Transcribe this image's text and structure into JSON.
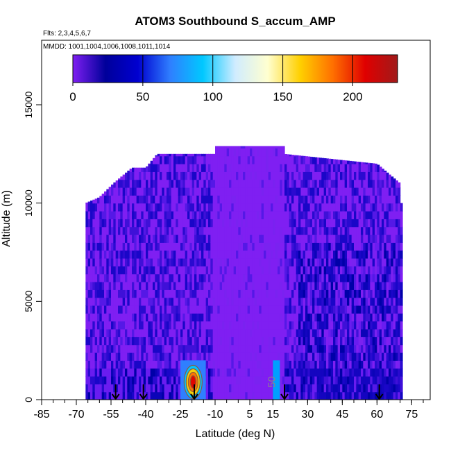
{
  "chart_data": {
    "type": "heatmap",
    "title": "ATOM3 Southbound S_accum_AMP",
    "flights_note": "Flts: 2,3,4,5,6,7",
    "dates_note": "MMDD: 1001,1004,1006,1008,1011,1014",
    "xlabel": "Latitude (deg N)",
    "ylabel": "Altitude (m)",
    "xlim": [
      -85,
      83
    ],
    "ylim": [
      0,
      17500
    ],
    "x_ticks": [
      -85,
      -70,
      -55,
      -40,
      -25,
      -10,
      5,
      15,
      30,
      45,
      60,
      75
    ],
    "x_tick_labels": [
      "-85",
      "-70",
      "-55",
      "-40",
      "-25",
      "-10",
      "5",
      "15",
      "30",
      "45",
      "60",
      "75"
    ],
    "x_minor_step": 5,
    "y_ticks": [
      0,
      5000,
      10000,
      15000
    ],
    "y_tick_labels": [
      "0",
      "5000",
      "10000",
      "15000"
    ],
    "colorbar": {
      "ticks": [
        0,
        50,
        100,
        150,
        200
      ],
      "tick_labels": [
        "0",
        "50",
        "100",
        "150",
        "200"
      ],
      "range": [
        0,
        232
      ],
      "colors": [
        "#7f1ff2",
        "#00009a",
        "#0000d0",
        "#2f7fff",
        "#00c8ff",
        "#d0ecff",
        "#ffffd0",
        "#ffd000",
        "#ff7000",
        "#e00000",
        "#a01a1a"
      ]
    },
    "field": {
      "lat_extent": [
        -66,
        71
      ],
      "altitude_top_by_lat": [
        {
          "lat": -66,
          "alt": 10000
        },
        {
          "lat": -60,
          "alt": 10300
        },
        {
          "lat": -54,
          "alt": 11000
        },
        {
          "lat": -46,
          "alt": 11800
        },
        {
          "lat": -40,
          "alt": 11800
        },
        {
          "lat": -35,
          "alt": 12500
        },
        {
          "lat": -10,
          "alt": 12500
        },
        {
          "lat": -10,
          "alt": 12900
        },
        {
          "lat": 20,
          "alt": 12900
        },
        {
          "lat": 20,
          "alt": 12500
        },
        {
          "lat": 60,
          "alt": 12000
        },
        {
          "lat": 70,
          "alt": 11000
        },
        {
          "lat": 71,
          "alt": 9000
        }
      ],
      "background_value": 5,
      "enhanced_regions": [
        {
          "lat": [
            -25,
            -14
          ],
          "alt": [
            0,
            2000
          ],
          "value": 150
        },
        {
          "lat": [
            15,
            18
          ],
          "alt": [
            0,
            2000
          ],
          "value": 90
        }
      ]
    },
    "contour_labels": [
      {
        "text": "50",
        "lat": 16,
        "alt": 900
      }
    ],
    "profile_arrows_lat": [
      -53,
      -41,
      -19,
      20,
      61
    ]
  }
}
